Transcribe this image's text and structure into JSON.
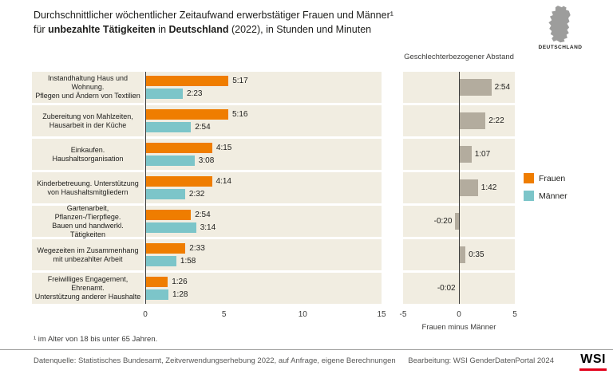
{
  "header": {
    "title_line1": "Durchschnittlicher wöchentlicher Zeitaufwand erwerbstätiger Frauen und Männer¹",
    "title_line2_parts": {
      "pre": "für ",
      "bold1": "unbezahlte Tätigkeiten",
      "mid": " in ",
      "bold2": "Deutschland",
      "post": " (2022), in Stunden und Minuten"
    },
    "country_label": "DEUTSCHLAND"
  },
  "chart_data": {
    "type": "bar",
    "orientation": "horizontal",
    "categories": [
      [
        "Instandhaltung Haus und Wohnung.",
        "Pflegen und Ändern von Textilien"
      ],
      [
        "Zubereitung von Mahlzeiten,",
        "Hausarbeit in der Küche"
      ],
      [
        "Einkaufen. Haushaltsorganisation"
      ],
      [
        "Kinderbetreuung. Unterstützung",
        "von Haushaltsmitgliedern"
      ],
      [
        "Gartenarbeit, Pflanzen-/Tierpflege.",
        "Bauen und handwerkl. Tätigkeiten"
      ],
      [
        "Wegezeiten im Zusammenhang",
        "mit unbezahlter Arbeit"
      ],
      [
        "Freiwilliges Engagement, Ehrenamt.",
        "Unterstützung anderer Haushalte"
      ]
    ],
    "series": [
      {
        "name": "Frauen",
        "color": "#ef7d00",
        "labels": [
          "5:17",
          "5:16",
          "4:15",
          "4:14",
          "2:54",
          "2:33",
          "1:26"
        ],
        "values_hours": [
          5.28,
          5.27,
          4.25,
          4.23,
          2.9,
          2.55,
          1.43
        ]
      },
      {
        "name": "Männer",
        "color": "#7cc5c9",
        "labels": [
          "2:23",
          "2:54",
          "3:08",
          "2:32",
          "3:14",
          "1:58",
          "1:28"
        ],
        "values_hours": [
          2.38,
          2.9,
          3.13,
          2.53,
          3.23,
          1.97,
          1.47
        ]
      }
    ],
    "main_axis": {
      "xlim": [
        0,
        15
      ],
      "ticks": [
        0,
        5,
        10,
        15
      ]
    },
    "gap": {
      "title": "Geschlechterbezogener Abstand",
      "color": "#b3ac9e",
      "labels": [
        "2:54",
        "2:22",
        "1:07",
        "1:42",
        "-0:20",
        "0:35",
        "-0:02"
      ],
      "values_hours": [
        2.9,
        2.37,
        1.12,
        1.7,
        -0.33,
        0.58,
        -0.03
      ],
      "xlabel": "Frauen minus Männer",
      "xlim": [
        -5,
        5
      ],
      "ticks": [
        -5,
        0,
        5
      ]
    }
  },
  "legend": {
    "items": [
      {
        "label": "Frauen",
        "color": "#ef7d00"
      },
      {
        "label": "Männer",
        "color": "#7cc5c9"
      }
    ]
  },
  "footnote": "¹ im Alter von 18 bis unter 65 Jahren.",
  "footer": {
    "source": "Datenquelle: Statistisches Bundesamt, Zeitverwendungserhebung 2022, auf Anfrage, eigene Berechnungen",
    "credit": "Bearbeitung: WSI GenderDatenPortal 2024",
    "logo": "WSI"
  }
}
